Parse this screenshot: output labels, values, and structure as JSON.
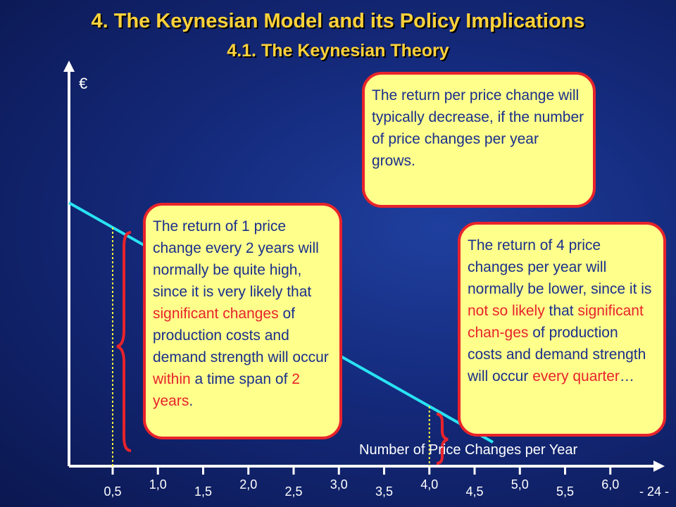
{
  "title": "4. The Keynesian Model and its Policy Implications",
  "subtitle": "4.1. The Keynesian Theory",
  "y_axis_label": "€",
  "x_axis_label": "Number of Price Changes per Year",
  "page_number": "- 24 -",
  "x_ticks": [
    {
      "value": 0.5,
      "label": "0,5"
    },
    {
      "value": 1.0,
      "label": "1,0"
    },
    {
      "value": 1.5,
      "label": "1,5"
    },
    {
      "value": 2.0,
      "label": "2,0"
    },
    {
      "value": 2.5,
      "label": "2,5"
    },
    {
      "value": 3.0,
      "label": "3,0"
    },
    {
      "value": 3.5,
      "label": "3,5"
    },
    {
      "value": 4.0,
      "label": "4,0"
    },
    {
      "value": 4.5,
      "label": "4,5"
    },
    {
      "value": 5.0,
      "label": "5,0"
    },
    {
      "value": 5.5,
      "label": "5,5"
    },
    {
      "value": 6.0,
      "label": "6,0"
    }
  ],
  "markers": [
    0.5,
    4.0
  ],
  "colors": {
    "title": "#ffd23a",
    "line": "#29e3f2",
    "axis": "#ffffff",
    "box_fill": "#ffff8c",
    "box_border": "#e8232b",
    "box_text": "#1a2f8c",
    "highlight": "#e8232b",
    "marker": "#f5f53a"
  },
  "box_top": {
    "text": "The return per price change will typically decrease, if the number of price changes per year grows."
  },
  "box_left": {
    "t1": "The return of 1 price change every 2 years will normally be quite high, since it is very likely that ",
    "h1": "significant changes",
    "t2": " of production costs and demand strength will occur ",
    "h2": "within",
    "t3": " a time span of ",
    "h3": "2 years",
    "t4": "."
  },
  "box_right": {
    "t1": "The return of 4 price changes per year will normally be lower, since it is ",
    "h1": "not so likely",
    "t2": " that ",
    "h2": "significant chan-ges",
    "t3": " of production costs and demand strength will occur ",
    "h3": "every quarter",
    "t4": "…"
  }
}
